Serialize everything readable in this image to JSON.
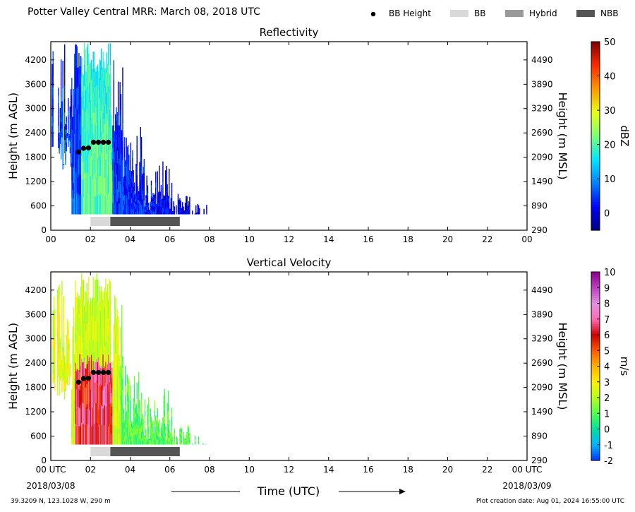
{
  "header": {
    "title": "Potter Valley Central MRR:  March 08, 2018 UTC",
    "legend": [
      {
        "label": "BB Height",
        "kind": "dot",
        "color": "#000000"
      },
      {
        "label": "BB",
        "kind": "bar",
        "color": "#d9d9d9"
      },
      {
        "label": "Hybrid",
        "kind": "bar",
        "color": "#999999"
      },
      {
        "label": "NBB",
        "kind": "bar",
        "color": "#555555"
      }
    ]
  },
  "footer": {
    "location": "39.3209 N, 123.1028 W, 290 m",
    "created": "Plot creation date: Aug 01, 2024 16:55:00 UTC",
    "xlabel": "Time (UTC)",
    "start_date": "2018/03/08",
    "end_date": "2018/03/09"
  },
  "chart_data": [
    {
      "type": "heatmap",
      "title": "Reflectivity",
      "xlabel": "Time (UTC)",
      "ylabel": "Height (m AGL)",
      "ylabel_right": "Height (m MSL)",
      "x_ticks": [
        "00",
        "02",
        "04",
        "06",
        "08",
        "10",
        "12",
        "14",
        "16",
        "18",
        "20",
        "22",
        "00"
      ],
      "y_ticks": [
        0,
        600,
        1200,
        1800,
        2400,
        3000,
        3600,
        4200
      ],
      "y_ticks_right": [
        290,
        890,
        1490,
        2090,
        2690,
        3290,
        3890,
        4490
      ],
      "xlim": [
        0,
        24
      ],
      "ylim": [
        0,
        4650
      ],
      "colorbar": {
        "label": "dBZ",
        "range": [
          -5,
          50
        ],
        "ticks": [
          0,
          10,
          20,
          30,
          40,
          50
        ],
        "colors": [
          "#00007f",
          "#0000ff",
          "#0080ff",
          "#00e5ff",
          "#7dff7a",
          "#e6ff14",
          "#ff9800",
          "#ff2a00",
          "#7f0000"
        ]
      },
      "bb_height": {
        "x": [
          1.4,
          1.65,
          1.9,
          2.15,
          2.4,
          2.65,
          2.9
        ],
        "y": [
          1930,
          2020,
          2030,
          2170,
          2170,
          2170,
          2170
        ]
      },
      "bb_type_bar": [
        {
          "type": "BB",
          "start": 2.0,
          "end": 3.0
        },
        {
          "type": "NBB",
          "start": 3.0,
          "end": 6.5
        }
      ]
    },
    {
      "type": "heatmap",
      "title": "Vertical Velocity",
      "xlabel": "Time (UTC)",
      "ylabel": "Height (m AGL)",
      "ylabel_right": "Height (m MSL)",
      "x_ticks": [
        "00 UTC",
        "02",
        "04",
        "06",
        "08",
        "10",
        "12",
        "14",
        "16",
        "18",
        "20",
        "22",
        "00 UTC"
      ],
      "y_ticks": [
        0,
        600,
        1200,
        1800,
        2400,
        3000,
        3600,
        4200
      ],
      "y_ticks_right": [
        290,
        890,
        1490,
        2090,
        2690,
        3290,
        3890,
        4490
      ],
      "xlim": [
        0,
        24
      ],
      "ylim": [
        0,
        4650
      ],
      "colorbar": {
        "label": "m/s",
        "range": [
          -2,
          10
        ],
        "ticks": [
          -2,
          -1,
          0,
          1,
          2,
          3,
          4,
          5,
          6,
          7,
          8,
          9,
          10
        ],
        "colors": [
          "#0033ff",
          "#00b4ff",
          "#00e0a0",
          "#50ff50",
          "#b4ff1e",
          "#fff000",
          "#ffb400",
          "#ff5a00",
          "#cc0000",
          "#ff69b4",
          "#e090e0",
          "#c040c0",
          "#8b008b"
        ]
      },
      "bb_height": {
        "x": [
          1.4,
          1.65,
          1.9,
          2.15,
          2.4,
          2.65,
          2.9
        ],
        "y": [
          1930,
          2020,
          2030,
          2170,
          2170,
          2170,
          2170
        ]
      },
      "bb_type_bar": [
        {
          "type": "BB",
          "start": 2.0,
          "end": 3.0
        },
        {
          "type": "NBB",
          "start": 3.0,
          "end": 6.5
        }
      ]
    }
  ]
}
